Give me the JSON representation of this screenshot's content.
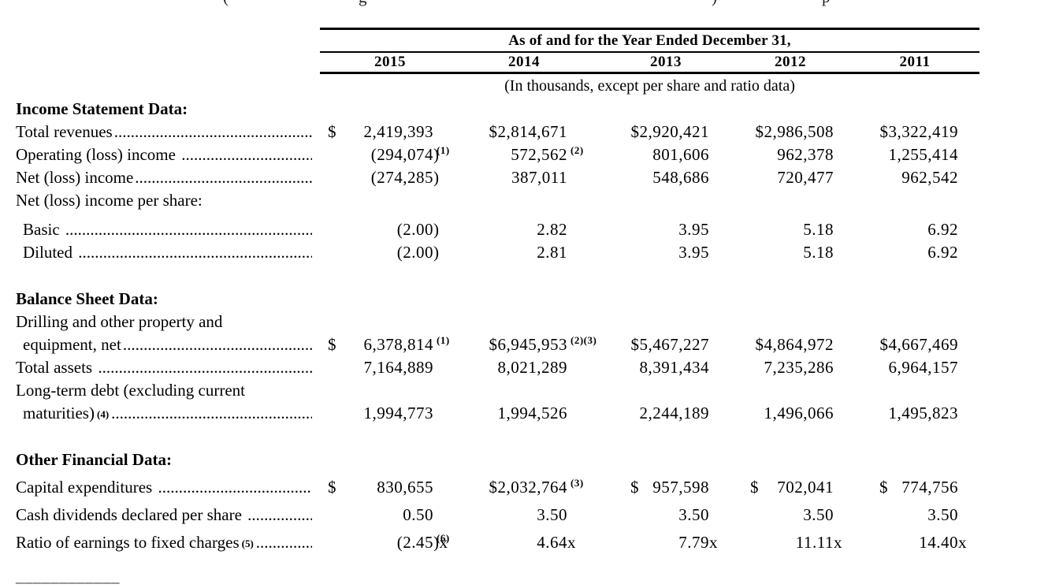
{
  "top_clipped_line": {
    "fragments": [
      "(",
      "g",
      ")",
      "p"
    ]
  },
  "table": {
    "header": {
      "title": "As of and for the Year Ended December 31,",
      "years": [
        "2015",
        "2014",
        "2013",
        "2012",
        "2011"
      ],
      "units_note": "(In thousands, except per share and ratio data)"
    }
  },
  "rows": [
    {
      "kind": "section",
      "label": "Income Statement Data:"
    },
    {
      "kind": "data",
      "label": "Total revenues",
      "dots": true,
      "cells": [
        {
          "d": "$",
          "v": "2,419,393"
        },
        {
          "v": "$2,814,671"
        },
        {
          "v": "$2,920,421"
        },
        {
          "v": "$2,986,508"
        },
        {
          "v": "$3,322,419"
        }
      ]
    },
    {
      "kind": "data",
      "label": "Operating (loss) income ",
      "dots": true,
      "cells": [
        {
          "v": "(294,074)",
          "s": "(1)"
        },
        {
          "v": "572,562",
          "s": "(2)"
        },
        {
          "v": "801,606"
        },
        {
          "v": "962,378"
        },
        {
          "v": "1,255,414"
        }
      ]
    },
    {
      "kind": "data",
      "label": "Net (loss) income",
      "dots": true,
      "cells": [
        {
          "v": "(274,285)"
        },
        {
          "v": "387,011"
        },
        {
          "v": "548,686"
        },
        {
          "v": "720,477"
        },
        {
          "v": "962,542"
        }
      ]
    },
    {
      "kind": "plain",
      "label": "Net (loss) income per share:"
    },
    {
      "kind": "data",
      "indent": true,
      "label": "Basic ",
      "dots": true,
      "cells": [
        {
          "v": "(2.00)"
        },
        {
          "v": "2.82"
        },
        {
          "v": "3.95"
        },
        {
          "v": "5.18"
        },
        {
          "v": "6.92"
        }
      ]
    },
    {
      "kind": "data",
      "indent": true,
      "label": "Diluted ",
      "dots": true,
      "cells": [
        {
          "v": "(2.00)"
        },
        {
          "v": "2.81"
        },
        {
          "v": "3.95"
        },
        {
          "v": "5.18"
        },
        {
          "v": "6.92"
        }
      ]
    },
    {
      "kind": "section",
      "label": "Balance Sheet Data:"
    },
    {
      "kind": "plain",
      "label": "Drilling and other property and"
    },
    {
      "kind": "data",
      "indent": true,
      "label": "equipment, net",
      "dots": true,
      "cells": [
        {
          "d": "$",
          "v": "6,378,814",
          "s": "(1)"
        },
        {
          "v": "$6,945,953",
          "s": "(2)(3)"
        },
        {
          "v": "$5,467,227"
        },
        {
          "v": "$4,864,972"
        },
        {
          "v": "$4,667,469"
        }
      ]
    },
    {
      "kind": "data",
      "label": "Total assets ",
      "dots": true,
      "cells": [
        {
          "v": "7,164,889"
        },
        {
          "v": "8,021,289"
        },
        {
          "v": "8,391,434"
        },
        {
          "v": "7,235,286"
        },
        {
          "v": "6,964,157"
        }
      ]
    },
    {
      "kind": "plain",
      "label": "Long-term debt (excluding current"
    },
    {
      "kind": "data",
      "indent": true,
      "label": "maturities)",
      "label_sup": "(4)",
      "dots": true,
      "cells": [
        {
          "v": "1,994,773"
        },
        {
          "v": "1,994,526"
        },
        {
          "v": "2,244,189"
        },
        {
          "v": "1,496,066"
        },
        {
          "v": "1,495,823"
        }
      ]
    },
    {
      "kind": "section",
      "label": "Other Financial Data:"
    },
    {
      "kind": "data",
      "label": "Capital expenditures ",
      "dots": true,
      "cells": [
        {
          "d": "$",
          "v": "830,655"
        },
        {
          "v": "$2,032,764",
          "s": "(3)"
        },
        {
          "d": "$",
          "v": "957,598"
        },
        {
          "d": "$",
          "v": "702,041"
        },
        {
          "d": "$",
          "v": "774,756"
        }
      ]
    },
    {
      "kind": "data",
      "label": "Cash dividends declared per share ",
      "dots": true,
      "cells": [
        {
          "v": "0.50"
        },
        {
          "v": "3.50"
        },
        {
          "v": "3.50"
        },
        {
          "v": "3.50"
        },
        {
          "v": "3.50"
        }
      ]
    },
    {
      "kind": "data",
      "label": "Ratio of earnings to fixed charges",
      "label_sup": "(5)",
      "dots": true,
      "cells": [
        {
          "v": "(2.45)x",
          "s": "(6)"
        },
        {
          "v": "4.64x"
        },
        {
          "v": "7.79x"
        },
        {
          "v": "11.11x"
        },
        {
          "v": "14.40x"
        }
      ]
    }
  ],
  "footnote_divider": "____________"
}
